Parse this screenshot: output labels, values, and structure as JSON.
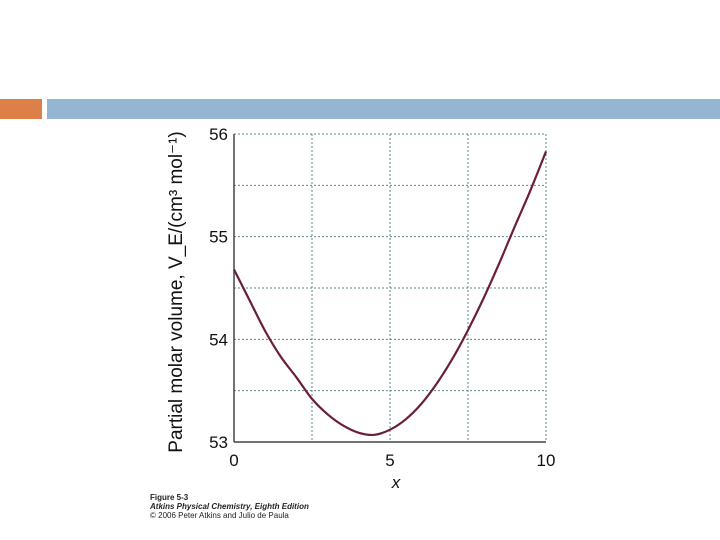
{
  "slide": {
    "accent_colors": {
      "orange": "#dd8047",
      "blue": "#94b6d2"
    }
  },
  "caption": {
    "figure": "Figure 5-3",
    "book": "Atkins Physical Chemistry, Eighth Edition",
    "copyright": "© 2006 Peter Atkins and Julio de Paula"
  },
  "chart_data": {
    "type": "line",
    "title": "",
    "xlabel": "x",
    "ylabel": "Partial molar volume, V_E/(cm³ mol⁻¹)",
    "xlim": [
      0,
      10
    ],
    "ylim": [
      53,
      56
    ],
    "x_ticks": [
      "0",
      "5",
      "10"
    ],
    "y_ticks": [
      "53",
      "54",
      "55",
      "56"
    ],
    "grid": true,
    "line_color": "#6b1d3e",
    "series": [
      {
        "x": [
          0,
          0.5,
          1,
          1.5,
          2,
          2.5,
          3,
          3.5,
          4,
          4.5,
          5,
          5.5,
          6,
          6.5,
          7,
          7.5,
          8,
          8.5,
          9,
          9.5,
          10
        ],
        "y": [
          54.68,
          54.38,
          54.08,
          53.83,
          53.63,
          53.42,
          53.27,
          53.16,
          53.09,
          53.07,
          53.12,
          53.22,
          53.37,
          53.57,
          53.81,
          54.09,
          54.4,
          54.74,
          55.1,
          55.45,
          55.83
        ]
      }
    ]
  }
}
